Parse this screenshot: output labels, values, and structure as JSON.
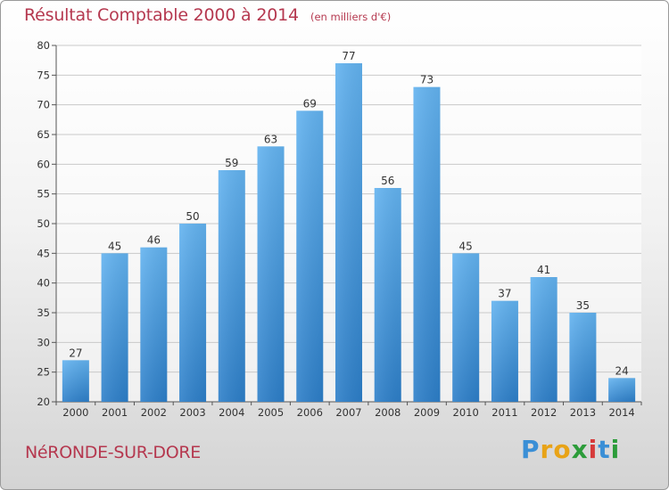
{
  "title": "Résultat Comptable 2000 à 2014",
  "unit": "(en milliers d'€)",
  "commune": "NéRONDE-SUR-DORE",
  "logo": {
    "letters": [
      "P",
      "r",
      "o",
      "x",
      "i",
      "t",
      "i"
    ],
    "colors": [
      "#3a8fd6",
      "#e8a317",
      "#e8a317",
      "#2c9c3a",
      "#d63a3a",
      "#3a8fd6",
      "#2c9c3a"
    ]
  },
  "colors": {
    "bar": "#3d8fd8",
    "bar_light": "#62b0ee",
    "text": "#b5384f"
  },
  "chart_data": {
    "type": "bar",
    "categories": [
      "2000",
      "2001",
      "2002",
      "2003",
      "2004",
      "2005",
      "2006",
      "2007",
      "2008",
      "2009",
      "2010",
      "2011",
      "2012",
      "2013",
      "2014"
    ],
    "values": [
      27,
      45,
      46,
      50,
      59,
      63,
      69,
      77,
      56,
      73,
      45,
      37,
      41,
      35,
      24
    ],
    "ylim": [
      20,
      80
    ],
    "yticks": [
      20,
      25,
      30,
      35,
      40,
      45,
      50,
      55,
      60,
      65,
      70,
      75,
      80
    ],
    "grid": true,
    "title": "Résultat Comptable 2000 à 2014",
    "xlabel": "",
    "ylabel": ""
  }
}
